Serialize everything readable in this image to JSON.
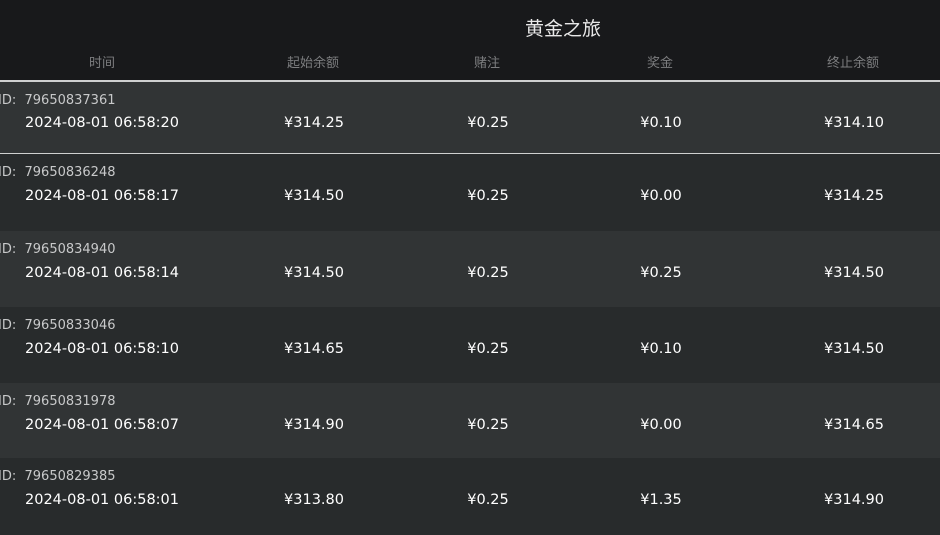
{
  "title": "黄金之旅",
  "columns": [
    "时间",
    "起始余额",
    "赌注",
    "奖金",
    "终止余额"
  ],
  "id_prefix": "ID:",
  "colors": {
    "header_bg": "#18191b",
    "row_light": "#313435",
    "row_dark": "#282b2c"
  },
  "rows": [
    {
      "id": "79650837361",
      "time": "2024-08-01  06:58:20",
      "start": "¥314.25",
      "bet": "¥0.25",
      "win": "¥0.10",
      "end": "¥314.10",
      "selected": true
    },
    {
      "id": "79650836248",
      "time": "2024-08-01  06:58:17",
      "start": "¥314.50",
      "bet": "¥0.25",
      "win": "¥0.00",
      "end": "¥314.25"
    },
    {
      "id": "79650834940",
      "time": "2024-08-01  06:58:14",
      "start": "¥314.50",
      "bet": "¥0.25",
      "win": "¥0.25",
      "end": "¥314.50"
    },
    {
      "id": "79650833046",
      "time": "2024-08-01  06:58:10",
      "start": "¥314.65",
      "bet": "¥0.25",
      "win": "¥0.10",
      "end": "¥314.50"
    },
    {
      "id": "79650831978",
      "time": "2024-08-01  06:58:07",
      "start": "¥314.90",
      "bet": "¥0.25",
      "win": "¥0.00",
      "end": "¥314.65"
    },
    {
      "id": "79650829385",
      "time": "2024-08-01  06:58:01",
      "start": "¥313.80",
      "bet": "¥0.25",
      "win": "¥1.35",
      "end": "¥314.90"
    }
  ]
}
